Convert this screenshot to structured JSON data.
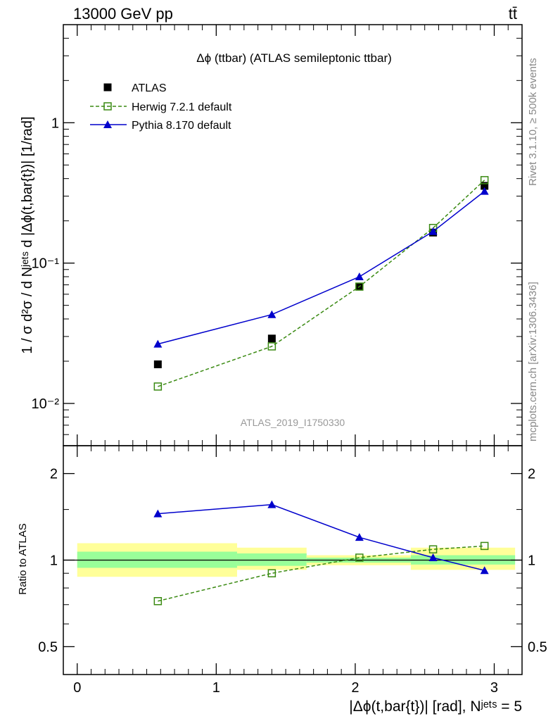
{
  "header": {
    "energy_label": "13000 GeV pp",
    "process_label": "tt̄"
  },
  "side_labels": {
    "rivet": "Rivet 3.1.10, ≥ 500k events",
    "mcplots": "mcplots.cern.ch [arXiv:1306.3436]"
  },
  "chart_data": [
    {
      "type": "line",
      "title": "Δϕ (ttbar) (ATLAS semileptonic ttbar)",
      "ylabel": "1 / σ d²σ / d Nʲᵉᵗˢ d |Δϕ(t,bar{t})| [1/rad]",
      "y_scale": "log",
      "ylim": [
        0.005,
        5
      ],
      "xlim": [
        -0.1,
        3.2
      ],
      "y_ticks": [
        "10⁻²",
        "10⁻¹",
        "1"
      ],
      "watermark": "ATLAS_2019_I1750330",
      "grid": false,
      "legend_position": "top-left",
      "x": [
        0.58,
        1.4,
        2.03,
        2.56,
        2.93
      ],
      "series": [
        {
          "name": "ATLAS",
          "values": [
            0.019,
            0.029,
            0.068,
            0.165,
            0.355
          ],
          "color": "#000000",
          "marker": "filled-square"
        },
        {
          "name": "Herwig 7.2.1 default",
          "values": [
            0.0132,
            0.0255,
            0.068,
            0.178,
            0.39
          ],
          "color": "#3a8a12",
          "marker": "open-square",
          "dashed": true
        },
        {
          "name": "Pythia 8.170 default",
          "values": [
            0.0265,
            0.043,
            0.08,
            0.168,
            0.325
          ],
          "color": "#0000cc",
          "marker": "filled-triangle"
        }
      ]
    },
    {
      "type": "line",
      "ylabel": "Ratio to ATLAS",
      "xlabel": "|Δϕ(t,bar{t})| [rad], Nʲᵉᵗˢ = 5",
      "y_scale": "log",
      "ylim": [
        0.4,
        2.5
      ],
      "xlim": [
        -0.1,
        3.2
      ],
      "y_ticks": [
        "0.5",
        "1",
        "2"
      ],
      "x_ticks": [
        "0",
        "1",
        "2",
        "3"
      ],
      "x": [
        0.58,
        1.4,
        2.03,
        2.56,
        2.93
      ],
      "reference_line": 1,
      "uncertainty_bands": [
        {
          "x0": 0.0,
          "x1": 1.15,
          "inner": [
            0.94,
            1.07
          ],
          "outer": [
            0.875,
            1.145
          ]
        },
        {
          "x0": 1.15,
          "x1": 1.65,
          "inner": [
            0.955,
            1.055
          ],
          "outer": [
            0.925,
            1.105
          ]
        },
        {
          "x0": 1.65,
          "x1": 2.4,
          "inner": [
            0.98,
            1.02
          ],
          "outer": [
            0.96,
            1.04
          ]
        },
        {
          "x0": 2.4,
          "x1": 3.15,
          "inner": [
            0.965,
            1.04
          ],
          "outer": [
            0.925,
            1.105
          ]
        }
      ],
      "band_colors": {
        "inner": "#99ff99",
        "outer": "#ffff99"
      },
      "series": [
        {
          "name": "Herwig 7.2.1 default",
          "values": [
            0.72,
            0.9,
            1.02,
            1.09,
            1.12
          ],
          "color": "#3a8a12",
          "marker": "open-square",
          "dashed": true
        },
        {
          "name": "Pythia 8.170 default",
          "values": [
            1.45,
            1.56,
            1.2,
            1.02,
            0.92
          ],
          "color": "#0000cc",
          "marker": "filled-triangle"
        }
      ]
    }
  ]
}
